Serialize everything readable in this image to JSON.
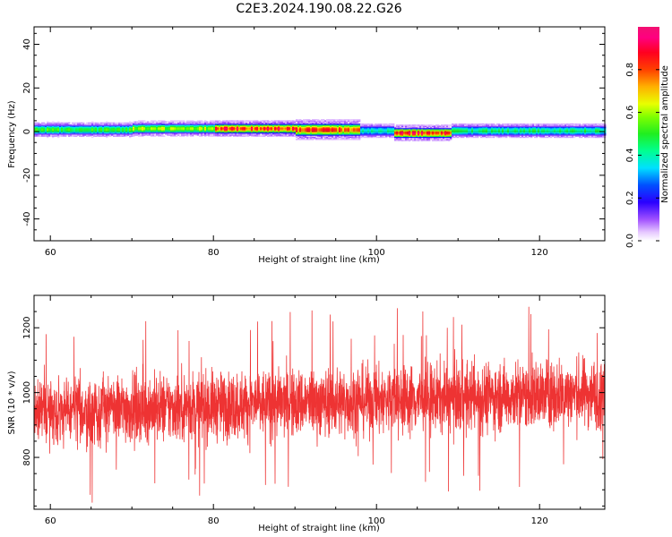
{
  "figure_title": "C2E3.2024.190.08.22.G26",
  "chart_data": [
    {
      "type": "heatmap",
      "title": "",
      "xlabel": "Height of straight line (km)",
      "ylabel": "Frequency (Hz)",
      "xlim": [
        58,
        128
      ],
      "ylim": [
        -50,
        48
      ],
      "xticks": [
        60,
        80,
        100,
        120
      ],
      "yticks": [
        40,
        20,
        0,
        -20,
        -40
      ],
      "colorbar": {
        "label": "Normalized spectral amplitude",
        "range": [
          0,
          1
        ],
        "ticks": [
          0.0,
          0.2,
          0.4,
          0.6,
          0.8
        ],
        "colormap": "gist_ncar-like (purple-blue-cyan-green-yellow-red-pink)"
      },
      "band": {
        "description": "Narrow horizontal band of high spectral amplitude centered near 0 Hz across the full height range",
        "segments": [
          {
            "x_from": 58,
            "x_to": 70,
            "center_hz": 1.0,
            "half_width_hz": 2.0,
            "peak": 0.5
          },
          {
            "x_from": 70,
            "x_to": 80,
            "center_hz": 1.5,
            "half_width_hz": 2.0,
            "peak": 0.6
          },
          {
            "x_from": 80,
            "x_to": 90,
            "center_hz": 1.5,
            "half_width_hz": 2.0,
            "peak": 0.85
          },
          {
            "x_from": 90,
            "x_to": 98,
            "center_hz": 1.0,
            "half_width_hz": 2.5,
            "peak": 0.8
          },
          {
            "x_from": 98,
            "x_to": 102,
            "center_hz": 0.5,
            "half_width_hz": 2.0,
            "peak": 0.4
          },
          {
            "x_from": 102,
            "x_to": 109,
            "center_hz": -0.5,
            "half_width_hz": 2.0,
            "peak": 0.85
          },
          {
            "x_from": 109,
            "x_to": 128,
            "center_hz": 0.5,
            "half_width_hz": 2.0,
            "peak": 0.45
          }
        ]
      }
    },
    {
      "type": "line",
      "title": "",
      "xlabel": "Height of straight line (km)",
      "ylabel": "SNR (10 * v/v)",
      "xlim": [
        58,
        128
      ],
      "ylim": [
        640,
        1300
      ],
      "xticks": [
        60,
        80,
        100,
        120
      ],
      "yticks": [
        800,
        1000,
        1200
      ],
      "color": "#ee3333",
      "series": [
        {
          "description": "Noisy SNR trace; mean rises from about 940 at 58 km to about 1000 at 128 km",
          "x_start": 58,
          "x_end": 128,
          "mean_start": 940,
          "mean_end": 1000,
          "typical_range": [
            760,
            1200
          ],
          "max": 1300,
          "min": 640
        }
      ]
    }
  ]
}
